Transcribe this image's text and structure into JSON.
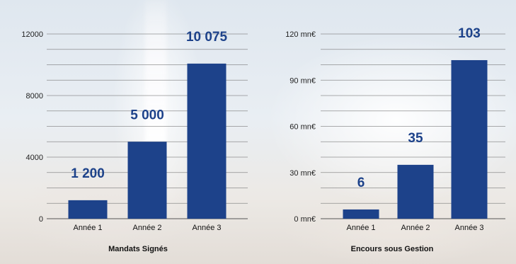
{
  "colors": {
    "bar": "#1d428a",
    "label": "#1d428a"
  },
  "chart_data": [
    {
      "type": "bar",
      "title": "Mandats Signés",
      "categories": [
        "Année 1",
        "Année 2",
        "Année 3"
      ],
      "values": [
        1200,
        5000,
        10075
      ],
      "data_labels": [
        "1 200",
        "5 000",
        "10 075"
      ],
      "yticks": [
        0,
        4000,
        8000,
        12000
      ],
      "ytick_labels": [
        "0",
        "4000",
        "8000",
        "12000"
      ],
      "ylim": [
        0,
        12000
      ],
      "grid": true
    },
    {
      "type": "bar",
      "title": "Encours sous Gestion",
      "categories": [
        "Année 1",
        "Année 2",
        "Année 3"
      ],
      "values": [
        6,
        35,
        103
      ],
      "data_labels": [
        "6",
        "35",
        "103"
      ],
      "yticks": [
        0,
        30,
        60,
        90,
        120
      ],
      "ytick_labels": [
        "0 mn€",
        "30 mn€",
        "60 mn€",
        "90 mn€",
        "120 mn€"
      ],
      "ylim": [
        0,
        120
      ],
      "grid": true
    }
  ]
}
